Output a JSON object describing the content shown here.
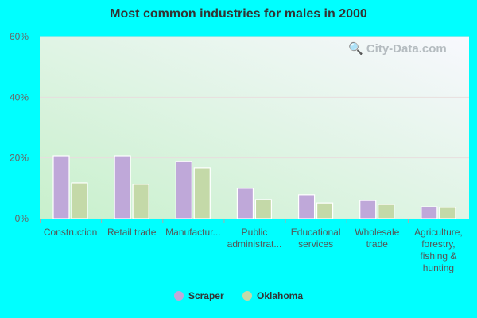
{
  "chart_data": {
    "type": "bar",
    "title": "Most common industries for males in 2000",
    "categories": [
      "Construction",
      "Retail trade",
      "Manufactur...",
      "Public administrat...",
      "Educational services",
      "Wholesale trade",
      "Agriculture, forestry, fishing & hunting"
    ],
    "category_lines": [
      [
        "Construction"
      ],
      [
        "Retail trade"
      ],
      [
        "Manufactur..."
      ],
      [
        "Public",
        "administrat..."
      ],
      [
        "Educational",
        "services"
      ],
      [
        "Wholesale",
        "trade"
      ],
      [
        "Agriculture,",
        "forestry,",
        "fishing &",
        "hunting"
      ]
    ],
    "series": [
      {
        "name": "Scraper",
        "color": "#bfa8d9",
        "values": [
          20.7,
          20.7,
          18.8,
          10.0,
          7.9,
          6.0,
          3.9
        ]
      },
      {
        "name": "Oklahoma",
        "color": "#c4d9a8",
        "values": [
          11.8,
          11.3,
          16.8,
          6.3,
          5.2,
          4.7,
          3.7
        ]
      }
    ],
    "ylim": [
      0,
      60
    ],
    "yticks": [
      "0%",
      "20%",
      "40%",
      "60%"
    ],
    "grid": true,
    "legend_position": "bottom"
  },
  "watermark": "City-Data.com"
}
